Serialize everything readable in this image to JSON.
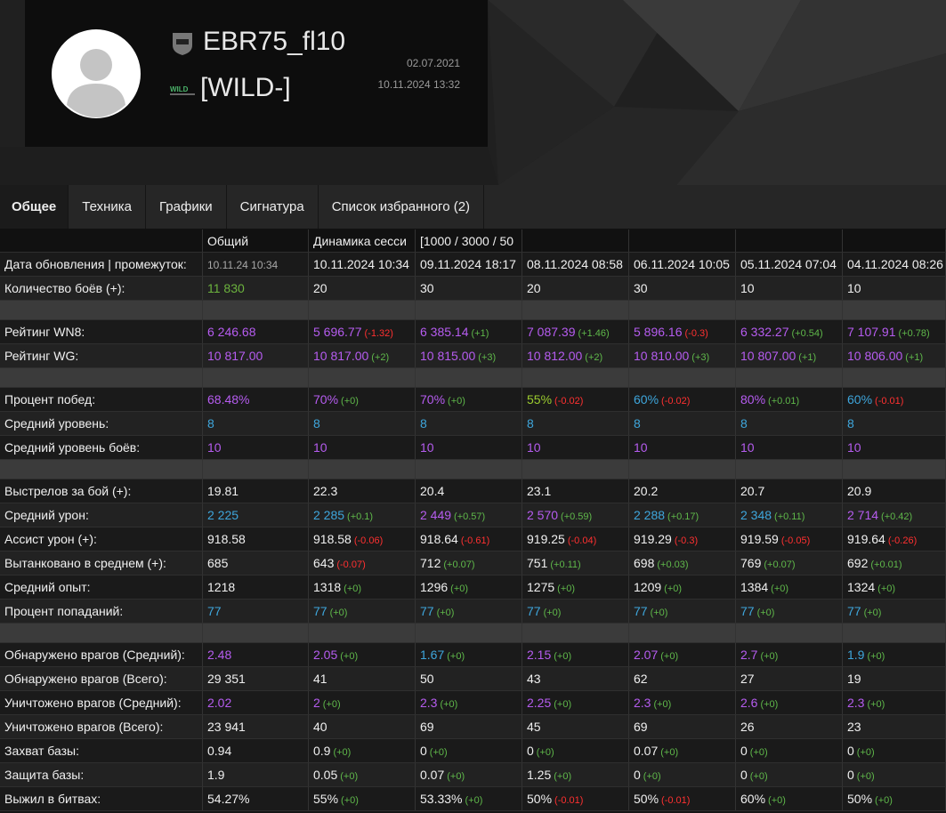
{
  "profile": {
    "name": "EBR75_fl10",
    "clan": "[WILD-]",
    "created": "02.07.2021",
    "updated": "10.11.2024 13:32"
  },
  "tabs": [
    "Общее",
    "Техника",
    "Графики",
    "Сигнатура",
    "Список избранного (2)"
  ],
  "table": {
    "header": [
      "Общий",
      "Динамика сесси",
      "[1000 / 3000 / 50"
    ],
    "groups": [
      {
        "rows": [
          {
            "label": "Дата обновления | промежуток:",
            "cells": [
              {
                "value": "10.11.24 10:34",
                "color": "#a8a8a8"
              },
              {
                "value": "10.11.2024 10:34"
              },
              {
                "value": "09.11.2024 18:17"
              },
              {
                "value": "08.11.2024 08:58"
              },
              {
                "value": "06.11.2024 10:05"
              },
              {
                "value": "05.11.2024 07:04"
              },
              {
                "value": "04.11.2024 08:26"
              }
            ]
          },
          {
            "label": "Количество боёв (+):",
            "cells": [
              {
                "value": "11 830",
                "color": "#6cb33e"
              },
              {
                "value": "20"
              },
              {
                "value": "30"
              },
              {
                "value": "20"
              },
              {
                "value": "30"
              },
              {
                "value": "10"
              },
              {
                "value": "10"
              }
            ]
          }
        ]
      },
      {
        "rows": [
          {
            "label": "Рейтинг WN8:",
            "cells": [
              {
                "value": "6 246.68",
                "color": "#b65cf0"
              },
              {
                "value": "5 696.77",
                "color": "#b65cf0",
                "delta": "(-1.32)"
              },
              {
                "value": "6 385.14",
                "color": "#b65cf0",
                "delta": "(+1)"
              },
              {
                "value": "7 087.39",
                "color": "#b65cf0",
                "delta": "(+1.46)"
              },
              {
                "value": "5 896.16",
                "color": "#b65cf0",
                "delta": "(-0.3)"
              },
              {
                "value": "6 332.27",
                "color": "#b65cf0",
                "delta": "(+0.54)"
              },
              {
                "value": "7 107.91",
                "color": "#b65cf0",
                "delta": "(+0.78)"
              }
            ]
          },
          {
            "label": "Рейтинг WG:",
            "cells": [
              {
                "value": "10 817.00",
                "color": "#b65cf0"
              },
              {
                "value": "10 817.00",
                "color": "#b65cf0",
                "delta": "(+2)"
              },
              {
                "value": "10 815.00",
                "color": "#b65cf0",
                "delta": "(+3)"
              },
              {
                "value": "10 812.00",
                "color": "#b65cf0",
                "delta": "(+2)"
              },
              {
                "value": "10 810.00",
                "color": "#b65cf0",
                "delta": "(+3)"
              },
              {
                "value": "10 807.00",
                "color": "#b65cf0",
                "delta": "(+1)"
              },
              {
                "value": "10 806.00",
                "color": "#b65cf0",
                "delta": "(+1)"
              }
            ]
          }
        ]
      },
      {
        "rows": [
          {
            "label": "Процент побед:",
            "cells": [
              {
                "value": "68.48%",
                "color": "#b65cf0"
              },
              {
                "value": "70%",
                "color": "#b65cf0",
                "delta": "(+0)"
              },
              {
                "value": "70%",
                "color": "#b65cf0",
                "delta": "(+0)"
              },
              {
                "value": "55%",
                "color": "#9ccc2f",
                "delta": "(-0.02)"
              },
              {
                "value": "60%",
                "color": "#3ea6dc",
                "delta": "(-0.02)"
              },
              {
                "value": "80%",
                "color": "#b65cf0",
                "delta": "(+0.01)"
              },
              {
                "value": "60%",
                "color": "#3ea6dc",
                "delta": "(-0.01)"
              }
            ]
          },
          {
            "label": "Средний уровень:",
            "cells": [
              {
                "value": "8",
                "color": "#3ea6dc"
              },
              {
                "value": "8",
                "color": "#3ea6dc"
              },
              {
                "value": "8",
                "color": "#3ea6dc"
              },
              {
                "value": "8",
                "color": "#3ea6dc"
              },
              {
                "value": "8",
                "color": "#3ea6dc"
              },
              {
                "value": "8",
                "color": "#3ea6dc"
              },
              {
                "value": "8",
                "color": "#3ea6dc"
              }
            ]
          },
          {
            "label": "Средний уровень боёв:",
            "cells": [
              {
                "value": "10",
                "color": "#b65cf0"
              },
              {
                "value": "10",
                "color": "#b65cf0"
              },
              {
                "value": "10",
                "color": "#b65cf0"
              },
              {
                "value": "10",
                "color": "#b65cf0"
              },
              {
                "value": "10",
                "color": "#b65cf0"
              },
              {
                "value": "10",
                "color": "#b65cf0"
              },
              {
                "value": "10",
                "color": "#b65cf0"
              }
            ]
          }
        ]
      },
      {
        "rows": [
          {
            "label": "Выстрелов за бой (+):",
            "cells": [
              {
                "value": "19.81"
              },
              {
                "value": "22.3"
              },
              {
                "value": "20.4"
              },
              {
                "value": "23.1"
              },
              {
                "value": "20.2"
              },
              {
                "value": "20.7"
              },
              {
                "value": "20.9"
              }
            ]
          },
          {
            "label": "Средний урон:",
            "cells": [
              {
                "value": "2 225",
                "color": "#3ea6dc"
              },
              {
                "value": "2 285",
                "color": "#3ea6dc",
                "delta": "(+0.1)"
              },
              {
                "value": "2 449",
                "color": "#b65cf0",
                "delta": "(+0.57)"
              },
              {
                "value": "2 570",
                "color": "#b65cf0",
                "delta": "(+0.59)"
              },
              {
                "value": "2 288",
                "color": "#3ea6dc",
                "delta": "(+0.17)"
              },
              {
                "value": "2 348",
                "color": "#3ea6dc",
                "delta": "(+0.11)"
              },
              {
                "value": "2 714",
                "color": "#b65cf0",
                "delta": "(+0.42)"
              }
            ]
          },
          {
            "label": "Ассист урон (+):",
            "cells": [
              {
                "value": "918.58"
              },
              {
                "value": "918.58",
                "delta": "(-0.06)"
              },
              {
                "value": "918.64",
                "delta": "(-0.61)"
              },
              {
                "value": "919.25",
                "delta": "(-0.04)"
              },
              {
                "value": "919.29",
                "delta": "(-0.3)"
              },
              {
                "value": "919.59",
                "delta": "(-0.05)"
              },
              {
                "value": "919.64",
                "delta": "(-0.26)"
              }
            ]
          },
          {
            "label": "Вытанковано в среднем (+):",
            "cells": [
              {
                "value": "685"
              },
              {
                "value": "643",
                "delta": "(-0.07)"
              },
              {
                "value": "712",
                "delta": "(+0.07)"
              },
              {
                "value": "751",
                "delta": "(+0.11)"
              },
              {
                "value": "698",
                "delta": "(+0.03)"
              },
              {
                "value": "769",
                "delta": "(+0.07)"
              },
              {
                "value": "692",
                "delta": "(+0.01)"
              }
            ]
          },
          {
            "label": "Средний опыт:",
            "cells": [
              {
                "value": "1218"
              },
              {
                "value": "1318",
                "delta": "(+0)"
              },
              {
                "value": "1296",
                "delta": "(+0)"
              },
              {
                "value": "1275",
                "delta": "(+0)"
              },
              {
                "value": "1209",
                "delta": "(+0)"
              },
              {
                "value": "1384",
                "delta": "(+0)"
              },
              {
                "value": "1324",
                "delta": "(+0)"
              }
            ]
          },
          {
            "label": "Процент попаданий:",
            "cells": [
              {
                "value": "77",
                "color": "#3ea6dc"
              },
              {
                "value": "77",
                "color": "#3ea6dc",
                "delta": "(+0)"
              },
              {
                "value": "77",
                "color": "#3ea6dc",
                "delta": "(+0)"
              },
              {
                "value": "77",
                "color": "#3ea6dc",
                "delta": "(+0)"
              },
              {
                "value": "77",
                "color": "#3ea6dc",
                "delta": "(+0)"
              },
              {
                "value": "77",
                "color": "#3ea6dc",
                "delta": "(+0)"
              },
              {
                "value": "77",
                "color": "#3ea6dc",
                "delta": "(+0)"
              }
            ]
          }
        ]
      },
      {
        "rows": [
          {
            "label": "Обнаружено врагов (Средний):",
            "cells": [
              {
                "value": "2.48",
                "color": "#b65cf0"
              },
              {
                "value": "2.05",
                "color": "#b65cf0",
                "delta": "(+0)"
              },
              {
                "value": "1.67",
                "color": "#3ea6dc",
                "delta": "(+0)"
              },
              {
                "value": "2.15",
                "color": "#b65cf0",
                "delta": "(+0)"
              },
              {
                "value": "2.07",
                "color": "#b65cf0",
                "delta": "(+0)"
              },
              {
                "value": "2.7",
                "color": "#b65cf0",
                "delta": "(+0)"
              },
              {
                "value": "1.9",
                "color": "#3ea6dc",
                "delta": "(+0)"
              }
            ]
          },
          {
            "label": "Обнаружено врагов (Всего):",
            "cells": [
              {
                "value": "29 351"
              },
              {
                "value": "41"
              },
              {
                "value": "50"
              },
              {
                "value": "43"
              },
              {
                "value": "62"
              },
              {
                "value": "27"
              },
              {
                "value": "19"
              }
            ]
          },
          {
            "label": "Уничтожено врагов (Средний):",
            "cells": [
              {
                "value": "2.02",
                "color": "#b65cf0"
              },
              {
                "value": "2",
                "color": "#b65cf0",
                "delta": "(+0)"
              },
              {
                "value": "2.3",
                "color": "#b65cf0",
                "delta": "(+0)"
              },
              {
                "value": "2.25",
                "color": "#b65cf0",
                "delta": "(+0)"
              },
              {
                "value": "2.3",
                "color": "#b65cf0",
                "delta": "(+0)"
              },
              {
                "value": "2.6",
                "color": "#b65cf0",
                "delta": "(+0)"
              },
              {
                "value": "2.3",
                "color": "#b65cf0",
                "delta": "(+0)"
              }
            ]
          },
          {
            "label": "Уничтожено врагов (Всего):",
            "cells": [
              {
                "value": "23 941"
              },
              {
                "value": "40"
              },
              {
                "value": "69"
              },
              {
                "value": "45"
              },
              {
                "value": "69"
              },
              {
                "value": "26"
              },
              {
                "value": "23"
              }
            ]
          },
          {
            "label": "Захват базы:",
            "cells": [
              {
                "value": "0.94"
              },
              {
                "value": "0.9",
                "delta": "(+0)"
              },
              {
                "value": "0",
                "delta": "(+0)"
              },
              {
                "value": "0",
                "delta": "(+0)"
              },
              {
                "value": "0.07",
                "delta": "(+0)"
              },
              {
                "value": "0",
                "delta": "(+0)"
              },
              {
                "value": "0",
                "delta": "(+0)"
              }
            ]
          },
          {
            "label": "Защита базы:",
            "cells": [
              {
                "value": "1.9"
              },
              {
                "value": "0.05",
                "delta": "(+0)"
              },
              {
                "value": "0.07",
                "delta": "(+0)"
              },
              {
                "value": "1.25",
                "delta": "(+0)"
              },
              {
                "value": "0",
                "delta": "(+0)"
              },
              {
                "value": "0",
                "delta": "(+0)"
              },
              {
                "value": "0",
                "delta": "(+0)"
              }
            ]
          },
          {
            "label": "Выжил в битвах:",
            "cells": [
              {
                "value": "54.27%"
              },
              {
                "value": "55%",
                "delta": "(+0)"
              },
              {
                "value": "53.33%",
                "delta": "(+0)"
              },
              {
                "value": "50%",
                "delta": "(-0.01)"
              },
              {
                "value": "50%",
                "delta": "(-0.01)"
              },
              {
                "value": "60%",
                "delta": "(+0)"
              },
              {
                "value": "50%",
                "delta": "(+0)"
              }
            ]
          }
        ]
      }
    ]
  }
}
